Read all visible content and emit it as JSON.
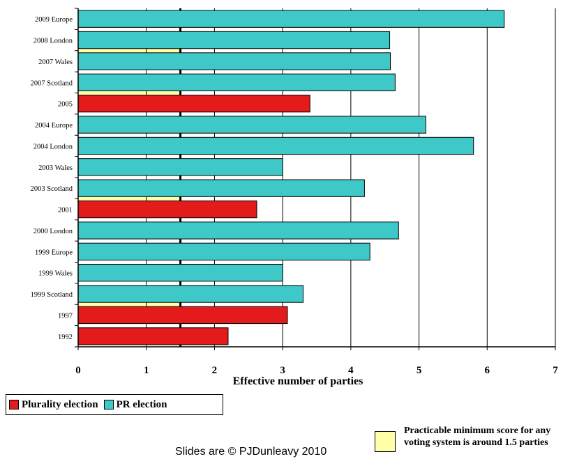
{
  "chart_data": {
    "type": "bar",
    "orientation": "horizontal",
    "xlabel": "Effective number of parties",
    "xlim": [
      0,
      7
    ],
    "xticks": [
      "0",
      "1",
      "2",
      "3",
      "4",
      "5",
      "6",
      "7"
    ],
    "grid": "vertical",
    "categories": [
      "2009 Europe",
      "2008 London",
      "2007 Wales",
      "2007 Scotland",
      "2005",
      "2004 Europe",
      "2004 London",
      "2003 Wales",
      "2003 Scotland",
      "2001",
      "2000 London",
      "1999 Europe",
      "1999 Wales",
      "1999 Scotland",
      "1997",
      "1992"
    ],
    "values": [
      6.25,
      4.57,
      4.58,
      4.65,
      3.4,
      5.1,
      5.8,
      3.0,
      4.2,
      2.62,
      4.7,
      4.28,
      3.0,
      3.3,
      3.07,
      2.2
    ],
    "election_type": [
      "PR",
      "PR",
      "PR",
      "PR",
      "Plurality",
      "PR",
      "PR",
      "PR",
      "PR",
      "Plurality",
      "PR",
      "PR",
      "PR",
      "PR",
      "Plurality",
      "Plurality"
    ],
    "minimum_score": 1.5,
    "minimum_band_rows": [
      1,
      3,
      8,
      13
    ],
    "series": [
      {
        "name": "Plurality election",
        "color": "#e31b1b"
      },
      {
        "name": "PR election",
        "color": "#3ec8c8"
      }
    ],
    "minimum_band_color": "#ffffa8",
    "legend_position": "bottom-left"
  },
  "legend": {
    "plurality_label": "Plurality election",
    "pr_label": "PR election"
  },
  "annotation": {
    "minimum_note": "Practicable minimum score for any voting system is around 1.5 parties"
  },
  "footer": {
    "copyright": "Slides are © PJDunleavy 2010"
  }
}
